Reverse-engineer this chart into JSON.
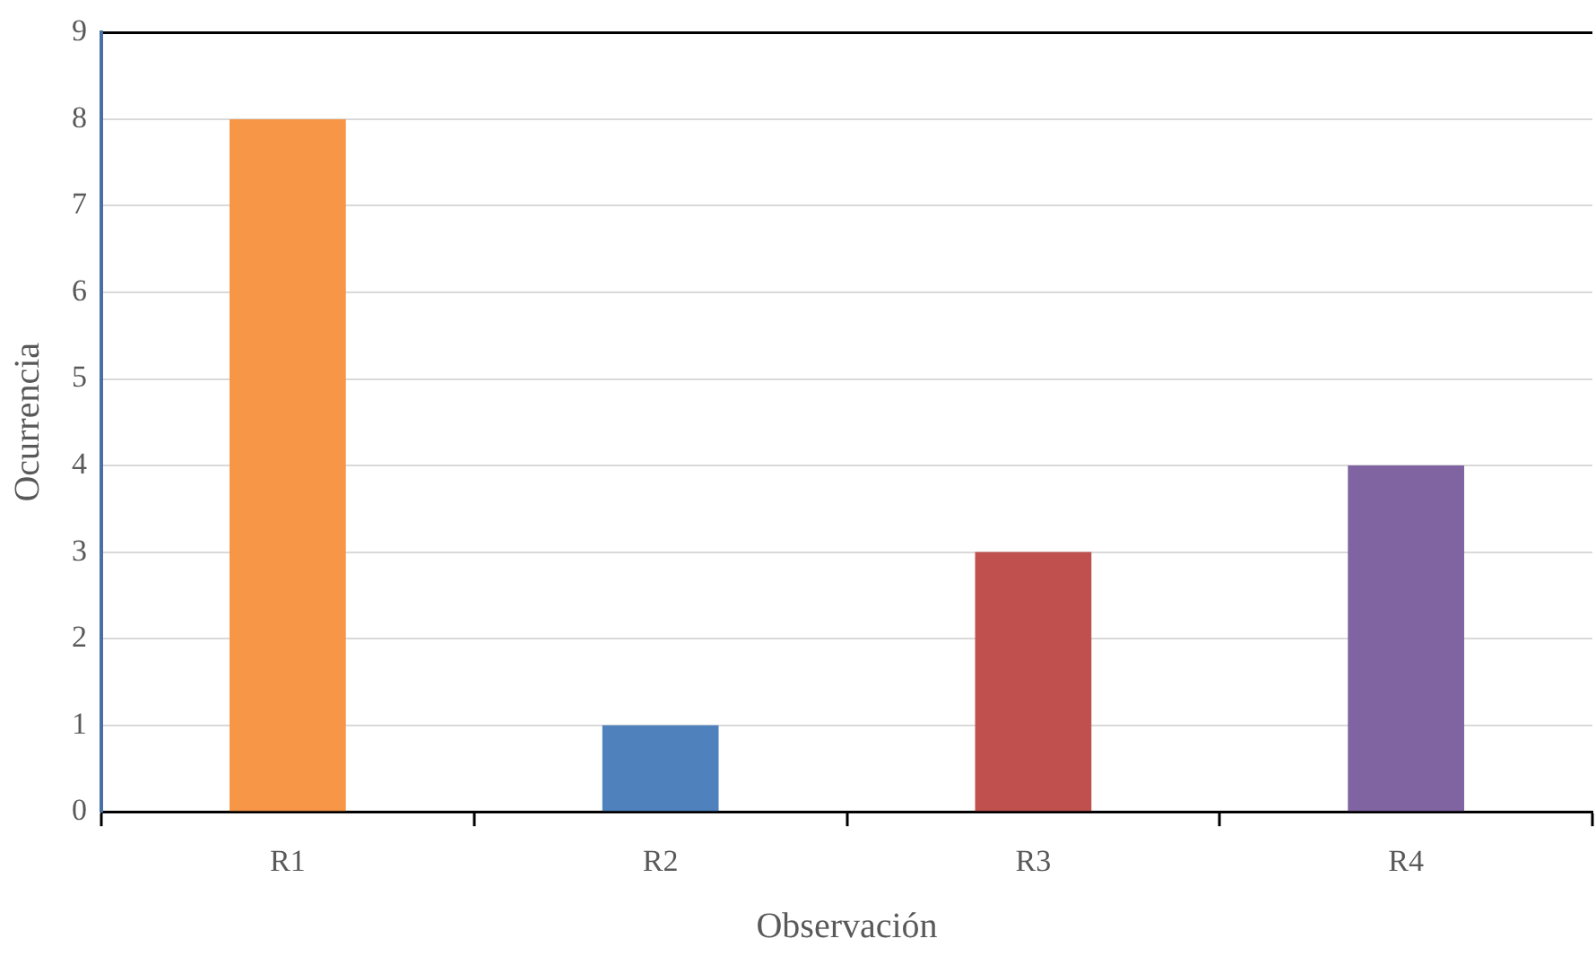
{
  "chart_data": {
    "type": "bar",
    "xlabel": "Observación",
    "ylabel": "Ocurrencia",
    "categories": [
      "R1",
      "R2",
      "R3",
      "R4"
    ],
    "values": [
      8,
      1,
      3,
      4
    ],
    "colors": [
      "#f79646",
      "#4f81bd",
      "#c0504d",
      "#8064a2"
    ],
    "ylim": [
      0,
      9
    ],
    "yticks": [
      0,
      1,
      2,
      3,
      4,
      5,
      6,
      7,
      8,
      9
    ],
    "grid": "y",
    "legend": false
  }
}
